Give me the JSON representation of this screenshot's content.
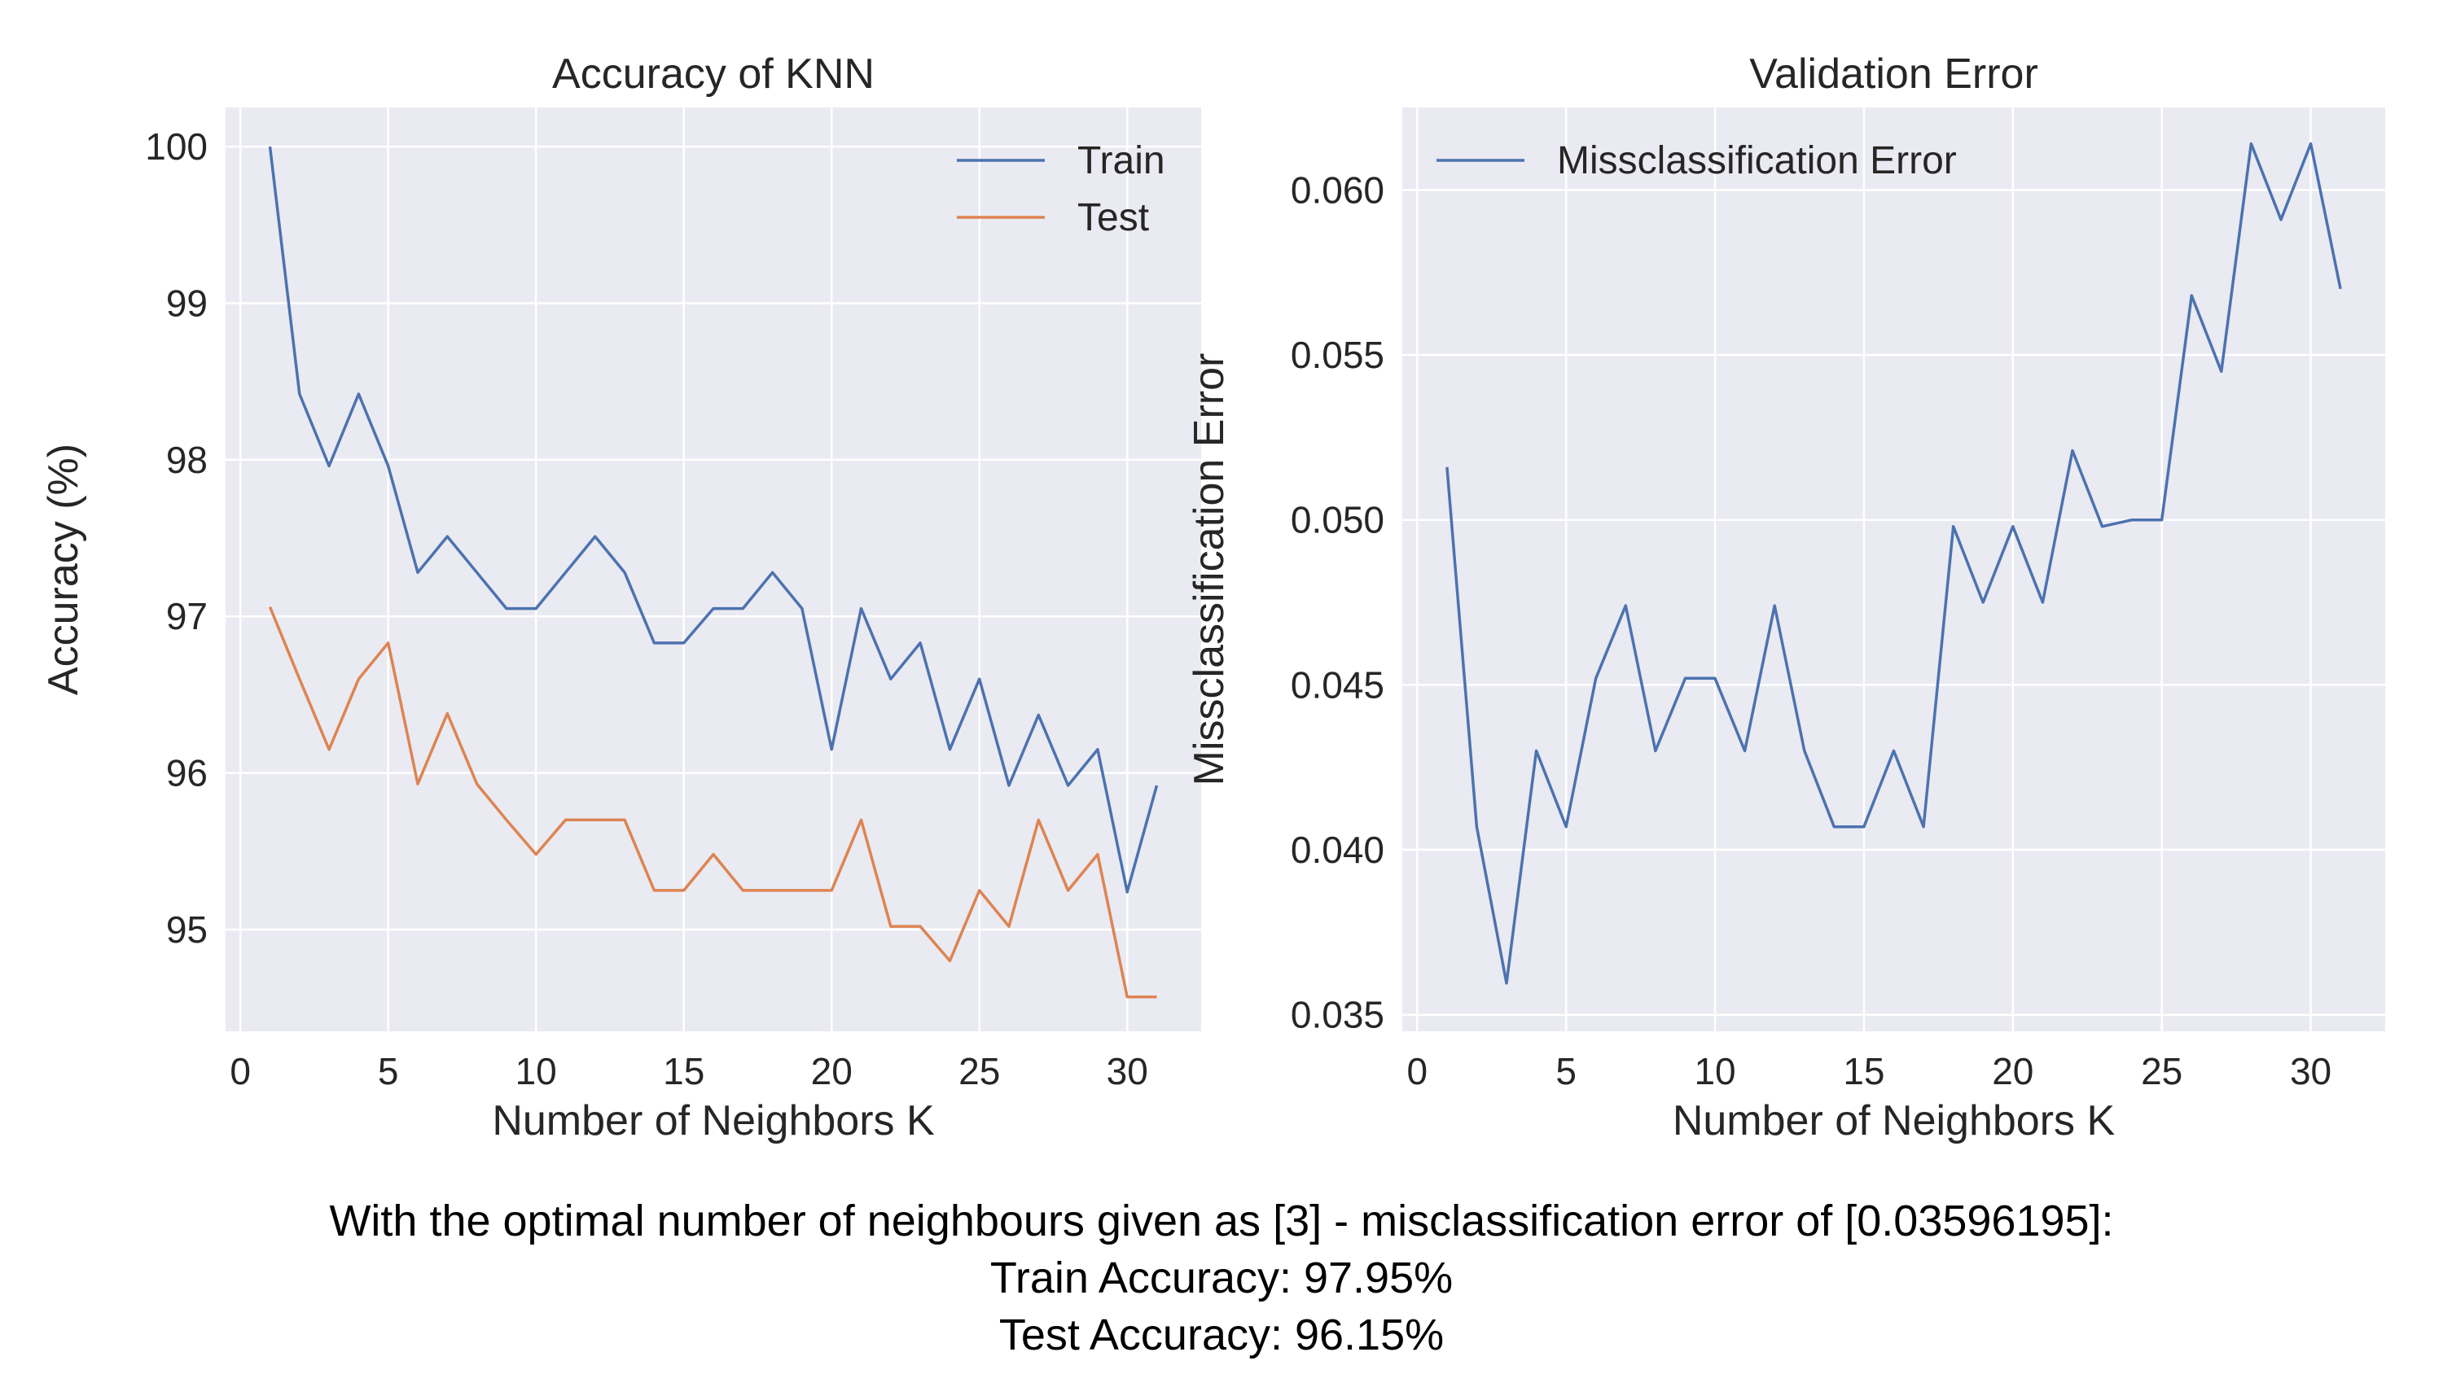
{
  "chart_data": [
    {
      "type": "line",
      "title": "Accuracy of KNN",
      "xlabel": "Number of Neighbors K",
      "ylabel": "Accuracy (%)",
      "xlim": [
        -0.5,
        32.5
      ],
      "ylim": [
        94.35,
        100.25
      ],
      "xticks": [
        0,
        5,
        10,
        15,
        20,
        25,
        30
      ],
      "yticks": [
        95,
        96,
        97,
        98,
        99,
        100
      ],
      "grid": true,
      "legend": "top-right",
      "x": [
        1,
        2,
        3,
        4,
        5,
        6,
        7,
        8,
        9,
        10,
        11,
        12,
        13,
        14,
        15,
        16,
        17,
        18,
        19,
        20,
        21,
        22,
        23,
        24,
        25,
        26,
        27,
        28,
        29,
        30,
        31
      ],
      "series": [
        {
          "name": "Train",
          "color": "#4c72b0",
          "values": [
            100,
            98.42,
            97.96,
            98.42,
            97.96,
            97.28,
            97.51,
            97.28,
            97.05,
            97.05,
            97.28,
            97.51,
            97.28,
            96.83,
            96.83,
            97.05,
            97.05,
            97.28,
            97.05,
            96.15,
            97.05,
            96.6,
            96.83,
            96.15,
            96.6,
            95.92,
            96.37,
            95.92,
            96.15,
            95.24,
            95.92
          ]
        },
        {
          "name": "Test",
          "color": "#dd8452",
          "values": [
            97.06,
            96.6,
            96.15,
            96.6,
            96.83,
            95.93,
            96.38,
            95.93,
            95.7,
            95.48,
            95.7,
            95.7,
            95.7,
            95.25,
            95.25,
            95.48,
            95.25,
            95.25,
            95.25,
            95.25,
            95.7,
            95.02,
            95.02,
            94.8,
            95.25,
            95.02,
            95.7,
            95.25,
            95.48,
            94.57,
            94.57
          ]
        }
      ]
    },
    {
      "type": "line",
      "title": "Validation Error",
      "xlabel": "Number of Neighbors K",
      "ylabel": "Missclassification Error",
      "xlim": [
        -0.5,
        32.5
      ],
      "ylim": [
        0.0345,
        0.0625
      ],
      "xticks": [
        0,
        5,
        10,
        15,
        20,
        25,
        30
      ],
      "yticks": [
        0.035,
        0.04,
        0.045,
        0.05,
        0.055,
        0.06
      ],
      "ytick_labels": [
        "0.035",
        "0.040",
        "0.045",
        "0.050",
        "0.055",
        "0.060"
      ],
      "grid": true,
      "legend": "top-left",
      "x": [
        1,
        2,
        3,
        4,
        5,
        6,
        7,
        8,
        9,
        10,
        11,
        12,
        13,
        14,
        15,
        16,
        17,
        18,
        19,
        20,
        21,
        22,
        23,
        24,
        25,
        26,
        27,
        28,
        29,
        30,
        31
      ],
      "series": [
        {
          "name": "Missclassification Error",
          "color": "#4c72b0",
          "values": [
            0.0516,
            0.0407,
            0.03596,
            0.043,
            0.0407,
            0.0452,
            0.0474,
            0.043,
            0.0452,
            0.0452,
            0.043,
            0.0474,
            0.043,
            0.0407,
            0.0407,
            0.043,
            0.0407,
            0.0498,
            0.0475,
            0.0498,
            0.0475,
            0.0521,
            0.0498,
            0.05,
            0.05,
            0.0568,
            0.0545,
            0.0614,
            0.0591,
            0.0614,
            0.057
          ]
        }
      ]
    }
  ],
  "caption": {
    "line1": "With the optimal number of neighbours given as [3]  - misclassification error of [0.03596195]:",
    "line2": "Train Accuracy: 97.95%",
    "line3": "Test Accuracy: 96.15%"
  }
}
